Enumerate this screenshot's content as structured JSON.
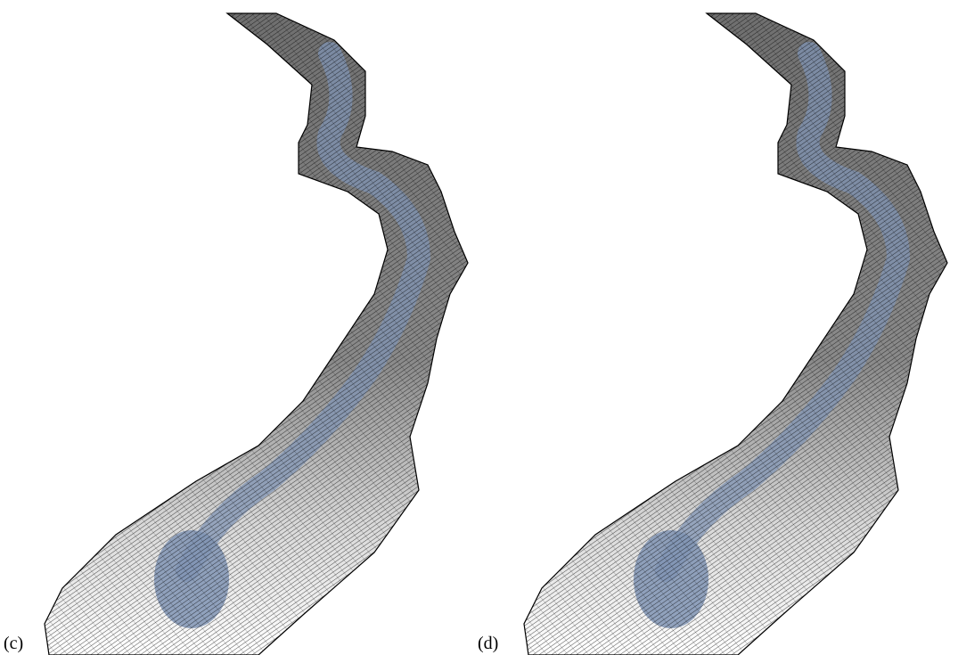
{
  "panels": [
    {
      "label": "(c)"
    },
    {
      "label": "(d)"
    }
  ]
}
